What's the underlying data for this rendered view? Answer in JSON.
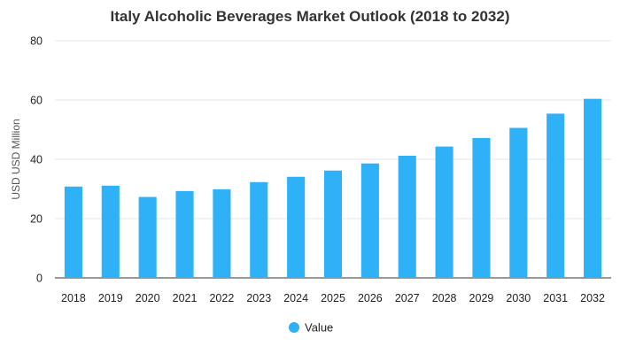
{
  "chart_data": {
    "type": "bar",
    "title": "Italy Alcoholic Beverages Market Outlook (2018 to 2032)",
    "xlabel": "",
    "ylabel": "USD USD Million",
    "categories": [
      "2018",
      "2019",
      "2020",
      "2021",
      "2022",
      "2023",
      "2024",
      "2025",
      "2026",
      "2027",
      "2028",
      "2029",
      "2030",
      "2031",
      "2032"
    ],
    "series": [
      {
        "name": "Value",
        "values": [
          30.8,
          31.1,
          27.3,
          29.3,
          29.9,
          32.3,
          34.1,
          36.2,
          38.6,
          41.2,
          44.3,
          47.2,
          50.6,
          55.4,
          60.4
        ]
      }
    ],
    "ylim": [
      0,
      80
    ],
    "yticks": [
      "0",
      "20",
      "40",
      "60",
      "80"
    ],
    "grid": true,
    "legend_position": "bottom",
    "colors": {
      "bar": "#2eb1f7",
      "grid": "#e6e6e6",
      "axis": "#333333"
    }
  }
}
